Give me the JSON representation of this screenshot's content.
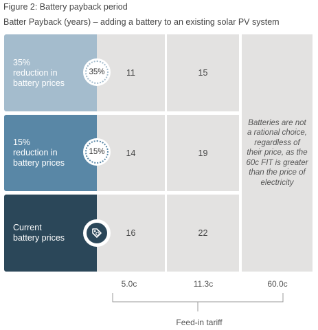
{
  "figure": {
    "title": "Figure 2: Battery payback period",
    "subtitle": "Batter Payback (years) – adding a battery to an existing solar PV system"
  },
  "colors": {
    "row_35": "#a4bccd",
    "row_15": "#5987a6",
    "row_current": "#2b4759",
    "cell_bg": "#e3e2e1"
  },
  "rows": [
    {
      "label": "35%\nreduction in\nbattery prices",
      "badge": "35%",
      "badge_icon": "percent-seal-icon"
    },
    {
      "label": "15%\nreduction in\nbattery prices",
      "badge": "15%",
      "badge_icon": "percent-seal-icon"
    },
    {
      "label": "Current\nbattery prices",
      "badge": "",
      "badge_icon": "price-tag-icon"
    }
  ],
  "note": "Batteries are not a rational choice, regardless of their price, as the 60c FIT is greater than the price of electricity",
  "x_axis": {
    "title": "Feed-in tariff",
    "ticks": [
      "5.0c",
      "11.3c",
      "60.0c"
    ]
  },
  "chart_data": {
    "type": "table",
    "title": "Figure 2: Battery payback period",
    "subtitle": "Batter Payback (years) – adding a battery to an existing solar PV system",
    "xlabel": "Feed-in tariff",
    "columns": [
      "5.0c",
      "11.3c",
      "60.0c"
    ],
    "rows": [
      "35% reduction in battery prices",
      "15% reduction in battery prices",
      "Current battery prices"
    ],
    "values": [
      [
        11,
        15,
        null
      ],
      [
        14,
        19,
        null
      ],
      [
        16,
        22,
        null
      ]
    ],
    "annotation": "Batteries are not a rational choice, regardless of their price, as the 60c FIT is greater than the price of electricity"
  }
}
